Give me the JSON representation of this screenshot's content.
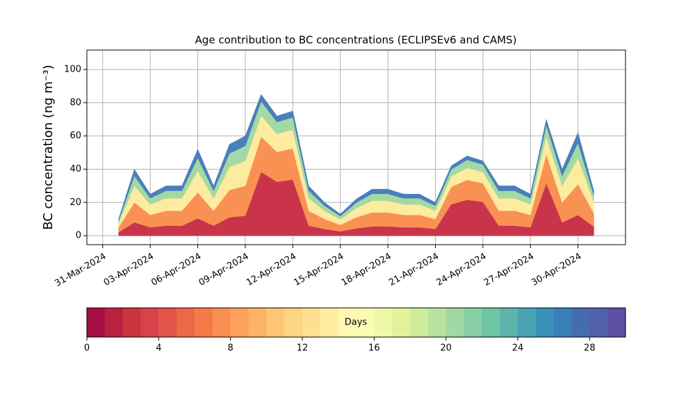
{
  "chart_data": {
    "type": "stacked_area",
    "title": "Age contribution to BC concentrations (ECLIPSEv6 and CAMS)",
    "ylabel": "BC concentration (ng m⁻³)",
    "x": [
      "2024-04-01",
      "2024-04-02",
      "2024-04-03",
      "2024-04-04",
      "2024-04-05",
      "2024-04-06",
      "2024-04-07",
      "2024-04-08",
      "2024-04-09",
      "2024-04-10",
      "2024-04-11",
      "2024-04-12",
      "2024-04-13",
      "2024-04-14",
      "2024-04-15",
      "2024-04-16",
      "2024-04-17",
      "2024-04-18",
      "2024-04-19",
      "2024-04-20",
      "2024-04-21",
      "2024-04-22",
      "2024-04-23",
      "2024-04-24",
      "2024-04-25",
      "2024-04-26",
      "2024-04-27",
      "2024-04-28",
      "2024-04-29",
      "2024-04-30",
      "2024-05-01"
    ],
    "xlim": [
      "2024-03-30",
      "2024-05-03"
    ],
    "xticks": [
      {
        "value": "2024-03-31",
        "label": "31-Mar-2024"
      },
      {
        "value": "2024-04-03",
        "label": "03-Apr-2024"
      },
      {
        "value": "2024-04-06",
        "label": "06-Apr-2024"
      },
      {
        "value": "2024-04-09",
        "label": "09-Apr-2024"
      },
      {
        "value": "2024-04-12",
        "label": "12-Apr-2024"
      },
      {
        "value": "2024-04-15",
        "label": "15-Apr-2024"
      },
      {
        "value": "2024-04-18",
        "label": "18-Apr-2024"
      },
      {
        "value": "2024-04-21",
        "label": "21-Apr-2024"
      },
      {
        "value": "2024-04-24",
        "label": "24-Apr-2024"
      },
      {
        "value": "2024-04-27",
        "label": "27-Apr-2024"
      },
      {
        "value": "2024-04-30",
        "label": "30-Apr-2024"
      }
    ],
    "ylim": [
      -5.4,
      111.7
    ],
    "yticks": [
      0,
      20,
      40,
      60,
      80,
      100
    ],
    "grid": true,
    "series": [
      {
        "color": "#c9344a",
        "values": [
          2,
          8,
          5,
          6,
          6,
          10.4,
          6,
          11,
          12,
          38.3,
          32.4,
          33.8,
          6,
          4,
          2.6,
          4.4,
          5.6,
          5.6,
          5,
          5,
          4,
          18.9,
          21.6,
          20.3,
          6,
          6,
          5,
          31.5,
          8,
          12.4,
          5.4
        ]
      },
      {
        "color": "#f99153",
        "values": [
          3,
          12,
          7.5,
          9,
          9,
          15.6,
          9,
          16.5,
          18,
          21.2,
          18,
          18.7,
          9,
          6,
          3.9,
          6.6,
          8.4,
          8.4,
          7.5,
          7.5,
          6,
          10.5,
          12,
          11.2,
          9,
          9,
          7.5,
          17.5,
          12,
          18.6,
          8.1
        ]
      },
      {
        "color": "#fdebA0",
        "values": [
          2.5,
          10,
          6.3,
          7.5,
          7.5,
          13,
          7.5,
          13.8,
          15,
          12.8,
          10.8,
          11.2,
          7.5,
          5,
          3.3,
          5.5,
          7,
          7,
          6.3,
          6.3,
          5,
          6.3,
          7.2,
          6.8,
          7.5,
          7.5,
          6.3,
          10.5,
          10,
          15.5,
          6.8
        ]
      },
      {
        "color": "#a2d9a4",
        "values": [
          1.5,
          6,
          3.7,
          4.5,
          4.5,
          7.8,
          4.5,
          8.2,
          9,
          8.5,
          7.2,
          7.5,
          4.5,
          3,
          1.9,
          3.3,
          4.2,
          4.2,
          3.7,
          3.7,
          3,
          4.2,
          4.8,
          4.5,
          4.5,
          4.5,
          3.7,
          7,
          6,
          9.3,
          4
        ]
      },
      {
        "color": "#4a7fbc",
        "values": [
          1,
          4,
          2.5,
          3,
          3,
          5.2,
          3,
          5.5,
          6,
          4.2,
          3.6,
          3.8,
          3,
          2,
          1.3,
          2.2,
          2.8,
          2.8,
          2.5,
          2.5,
          2,
          2.1,
          2.4,
          2.2,
          3,
          3,
          2.5,
          3.5,
          4,
          6.2,
          2.7
        ]
      }
    ],
    "colorbar": {
      "label": "Days",
      "lim": [
        0,
        30
      ],
      "ticks": [
        0,
        4,
        8,
        12,
        16,
        20,
        24,
        28
      ],
      "colors": [
        "#a50f44",
        "#b8213f",
        "#cb343e",
        "#d8434b",
        "#e3554a",
        "#ec6847",
        "#f57a48",
        "#f98e52",
        "#fca05c",
        "#fdb366",
        "#fec574",
        "#fed382",
        "#fee090",
        "#feed9f",
        "#fff8b2",
        "#fafcb4",
        "#eef8a8",
        "#e2f39c",
        "#cfeb9c",
        "#b9e29f",
        "#a1d8a3",
        "#88cea4",
        "#70c4a6",
        "#5cb4aa",
        "#4aa3b0",
        "#3a91b9",
        "#3a7fb9",
        "#456dad",
        "#5160a8",
        "#5e4fa2"
      ]
    }
  }
}
